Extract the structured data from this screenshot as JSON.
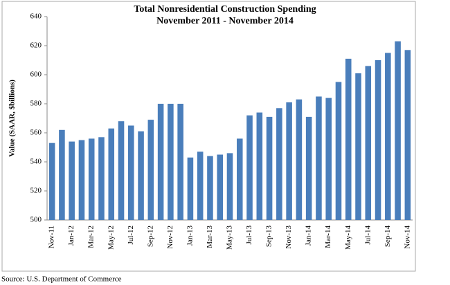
{
  "chart_data": {
    "type": "bar",
    "title": "Total Nonresidential Construction Spending",
    "subtitle": "November 2011 - November 2014",
    "y_label": "Value (SAAR, $billions)",
    "source": "Source:  U.S. Department of Commerce",
    "categories": [
      "Nov-11",
      null,
      "Jan-12",
      null,
      "Mar-12",
      null,
      "May-12",
      null,
      "Jul-12",
      null,
      "Sep-12",
      null,
      "Nov-12",
      null,
      "Jan-13",
      null,
      "Mar-13",
      null,
      "May-13",
      null,
      "Jul-13",
      null,
      "Sep-13",
      null,
      "Nov-13",
      null,
      "Jan-14",
      null,
      "Mar-14",
      null,
      "May-14",
      null,
      "Jul-14",
      null,
      "Sep-14",
      null,
      "Nov-14"
    ],
    "values": [
      553,
      562,
      554,
      555,
      556,
      557,
      563,
      568,
      565,
      561,
      569,
      580,
      580,
      580,
      543,
      547,
      544,
      545,
      546,
      556,
      572,
      574,
      571,
      577,
      581,
      583,
      571,
      585,
      584,
      595,
      611,
      601,
      606,
      610,
      615,
      623,
      617
    ],
    "color": "#4a7ebb",
    "ylim": [
      500,
      640
    ],
    "yticks": [
      500,
      520,
      540,
      560,
      580,
      600,
      620,
      640
    ]
  }
}
